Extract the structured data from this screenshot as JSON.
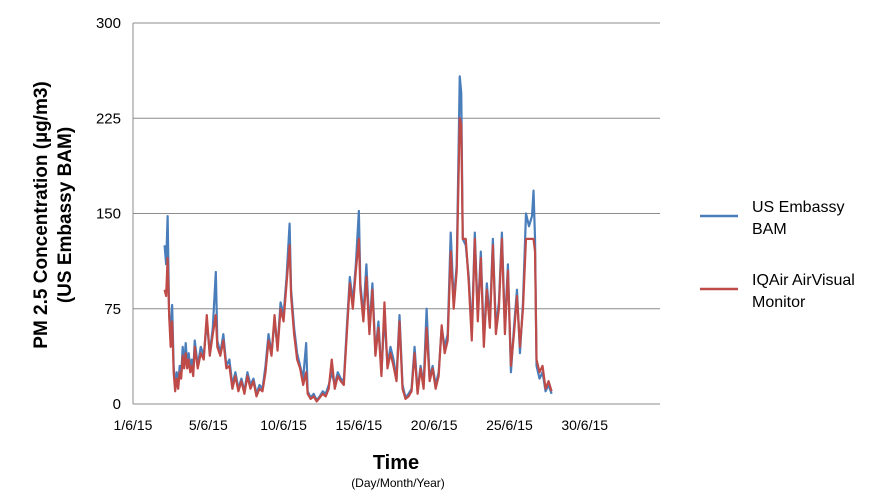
{
  "chart_data": {
    "type": "line",
    "title": "",
    "xlabel": "Time",
    "xlabel_sub": "(Day/Month/Year)",
    "ylabel_line1": "PM 2.5 Concentration (µg/m3)",
    "ylabel_line2": "(US Embassy BAM)",
    "ylim": [
      0,
      300
    ],
    "xlim": [
      1,
      36
    ],
    "y_ticks": [
      "0",
      "75",
      "150",
      "225",
      "300"
    ],
    "x_ticks": [
      {
        "label": "1/6/15",
        "day": 1
      },
      {
        "label": "5/6/15",
        "day": 6
      },
      {
        "label": "10/6/15",
        "day": 11
      },
      {
        "label": "15/6/15",
        "day": 16
      },
      {
        "label": "20/6/15",
        "day": 21
      },
      {
        "label": "25/6/15",
        "day": 26
      },
      {
        "label": "30/6/15",
        "day": 31
      }
    ],
    "grid": true,
    "legend": "right",
    "series": [
      {
        "name": "US Embassy BAM",
        "color": "#4a7ebb",
        "points": [
          [
            3.1,
            125
          ],
          [
            3.2,
            110
          ],
          [
            3.3,
            148
          ],
          [
            3.4,
            70
          ],
          [
            3.5,
            55
          ],
          [
            3.6,
            78
          ],
          [
            3.7,
            30
          ],
          [
            3.8,
            12
          ],
          [
            3.9,
            25
          ],
          [
            4.0,
            15
          ],
          [
            4.1,
            30
          ],
          [
            4.2,
            22
          ],
          [
            4.3,
            45
          ],
          [
            4.4,
            30
          ],
          [
            4.5,
            48
          ],
          [
            4.6,
            30
          ],
          [
            4.7,
            40
          ],
          [
            4.8,
            28
          ],
          [
            4.9,
            35
          ],
          [
            5.0,
            25
          ],
          [
            5.1,
            50
          ],
          [
            5.3,
            30
          ],
          [
            5.5,
            45
          ],
          [
            5.7,
            38
          ],
          [
            5.9,
            65
          ],
          [
            6.1,
            40
          ],
          [
            6.3,
            60
          ],
          [
            6.5,
            104
          ],
          [
            6.6,
            50
          ],
          [
            6.8,
            40
          ],
          [
            7.0,
            55
          ],
          [
            7.2,
            30
          ],
          [
            7.4,
            35
          ],
          [
            7.6,
            15
          ],
          [
            7.8,
            25
          ],
          [
            8.0,
            12
          ],
          [
            8.2,
            20
          ],
          [
            8.4,
            10
          ],
          [
            8.6,
            25
          ],
          [
            8.8,
            15
          ],
          [
            9.0,
            20
          ],
          [
            9.2,
            8
          ],
          [
            9.4,
            15
          ],
          [
            9.6,
            12
          ],
          [
            9.8,
            30
          ],
          [
            10.0,
            55
          ],
          [
            10.2,
            40
          ],
          [
            10.4,
            65
          ],
          [
            10.6,
            45
          ],
          [
            10.8,
            80
          ],
          [
            11.0,
            70
          ],
          [
            11.2,
            100
          ],
          [
            11.4,
            142
          ],
          [
            11.5,
            90
          ],
          [
            11.7,
            60
          ],
          [
            11.9,
            40
          ],
          [
            12.1,
            30
          ],
          [
            12.3,
            20
          ],
          [
            12.5,
            48
          ],
          [
            12.6,
            10
          ],
          [
            12.8,
            5
          ],
          [
            13.0,
            8
          ],
          [
            13.2,
            3
          ],
          [
            13.4,
            6
          ],
          [
            13.6,
            10
          ],
          [
            13.8,
            8
          ],
          [
            14.0,
            15
          ],
          [
            14.2,
            25
          ],
          [
            14.4,
            15
          ],
          [
            14.6,
            25
          ],
          [
            14.8,
            20
          ],
          [
            15.0,
            18
          ],
          [
            15.2,
            60
          ],
          [
            15.4,
            100
          ],
          [
            15.6,
            80
          ],
          [
            15.8,
            110
          ],
          [
            16.0,
            152
          ],
          [
            16.1,
            95
          ],
          [
            16.3,
            70
          ],
          [
            16.5,
            110
          ],
          [
            16.7,
            60
          ],
          [
            16.9,
            95
          ],
          [
            17.1,
            40
          ],
          [
            17.3,
            65
          ],
          [
            17.5,
            25
          ],
          [
            17.7,
            70
          ],
          [
            17.9,
            30
          ],
          [
            18.1,
            45
          ],
          [
            18.3,
            35
          ],
          [
            18.5,
            20
          ],
          [
            18.7,
            70
          ],
          [
            18.9,
            15
          ],
          [
            19.1,
            5
          ],
          [
            19.3,
            8
          ],
          [
            19.5,
            12
          ],
          [
            19.7,
            45
          ],
          [
            19.9,
            10
          ],
          [
            20.1,
            30
          ],
          [
            20.3,
            15
          ],
          [
            20.5,
            75
          ],
          [
            20.7,
            20
          ],
          [
            20.9,
            30
          ],
          [
            21.1,
            15
          ],
          [
            21.3,
            25
          ],
          [
            21.5,
            60
          ],
          [
            21.7,
            45
          ],
          [
            21.9,
            55
          ],
          [
            22.1,
            135
          ],
          [
            22.3,
            80
          ],
          [
            22.5,
            110
          ],
          [
            22.7,
            258
          ],
          [
            22.8,
            245
          ],
          [
            22.9,
            130
          ],
          [
            23.1,
            125
          ],
          [
            23.3,
            100
          ],
          [
            23.5,
            55
          ],
          [
            23.7,
            135
          ],
          [
            23.9,
            70
          ],
          [
            24.1,
            120
          ],
          [
            24.3,
            50
          ],
          [
            24.5,
            95
          ],
          [
            24.7,
            65
          ],
          [
            24.9,
            130
          ],
          [
            25.1,
            60
          ],
          [
            25.3,
            80
          ],
          [
            25.5,
            135
          ],
          [
            25.7,
            60
          ],
          [
            25.9,
            110
          ],
          [
            26.1,
            25
          ],
          [
            26.3,
            60
          ],
          [
            26.5,
            90
          ],
          [
            26.7,
            40
          ],
          [
            26.9,
            80
          ],
          [
            27.1,
            150
          ],
          [
            27.3,
            140
          ],
          [
            27.5,
            148
          ],
          [
            27.6,
            168
          ],
          [
            27.7,
            130
          ],
          [
            27.8,
            30
          ],
          [
            28.0,
            20
          ],
          [
            28.2,
            25
          ],
          [
            28.4,
            10
          ],
          [
            28.6,
            15
          ],
          [
            28.8,
            8
          ]
        ]
      },
      {
        "name": "IQAir AirVisual Monitor",
        "color": "#be4b48",
        "points": [
          [
            3.1,
            90
          ],
          [
            3.2,
            85
          ],
          [
            3.3,
            115
          ],
          [
            3.4,
            70
          ],
          [
            3.5,
            45
          ],
          [
            3.6,
            65
          ],
          [
            3.7,
            25
          ],
          [
            3.8,
            10
          ],
          [
            3.9,
            20
          ],
          [
            4.0,
            12
          ],
          [
            4.1,
            25
          ],
          [
            4.2,
            20
          ],
          [
            4.3,
            38
          ],
          [
            4.4,
            28
          ],
          [
            4.5,
            40
          ],
          [
            4.6,
            28
          ],
          [
            4.7,
            35
          ],
          [
            4.8,
            25
          ],
          [
            4.9,
            30
          ],
          [
            5.0,
            22
          ],
          [
            5.1,
            45
          ],
          [
            5.3,
            28
          ],
          [
            5.5,
            40
          ],
          [
            5.7,
            35
          ],
          [
            5.9,
            70
          ],
          [
            6.1,
            38
          ],
          [
            6.3,
            55
          ],
          [
            6.5,
            70
          ],
          [
            6.6,
            45
          ],
          [
            6.8,
            38
          ],
          [
            7.0,
            50
          ],
          [
            7.2,
            28
          ],
          [
            7.4,
            30
          ],
          [
            7.6,
            12
          ],
          [
            7.8,
            22
          ],
          [
            8.0,
            10
          ],
          [
            8.2,
            18
          ],
          [
            8.4,
            8
          ],
          [
            8.6,
            22
          ],
          [
            8.8,
            12
          ],
          [
            9.0,
            18
          ],
          [
            9.2,
            6
          ],
          [
            9.4,
            12
          ],
          [
            9.6,
            10
          ],
          [
            9.8,
            25
          ],
          [
            10.0,
            50
          ],
          [
            10.2,
            38
          ],
          [
            10.4,
            70
          ],
          [
            10.6,
            42
          ],
          [
            10.8,
            75
          ],
          [
            11.0,
            65
          ],
          [
            11.2,
            95
          ],
          [
            11.4,
            125
          ],
          [
            11.5,
            85
          ],
          [
            11.7,
            55
          ],
          [
            11.9,
            35
          ],
          [
            12.1,
            28
          ],
          [
            12.3,
            15
          ],
          [
            12.5,
            25
          ],
          [
            12.6,
            8
          ],
          [
            12.8,
            4
          ],
          [
            13.0,
            6
          ],
          [
            13.2,
            2
          ],
          [
            13.4,
            5
          ],
          [
            13.6,
            8
          ],
          [
            13.8,
            6
          ],
          [
            14.0,
            12
          ],
          [
            14.2,
            35
          ],
          [
            14.4,
            12
          ],
          [
            14.6,
            22
          ],
          [
            14.8,
            18
          ],
          [
            15.0,
            15
          ],
          [
            15.2,
            55
          ],
          [
            15.4,
            95
          ],
          [
            15.6,
            75
          ],
          [
            15.8,
            105
          ],
          [
            16.0,
            130
          ],
          [
            16.1,
            90
          ],
          [
            16.3,
            65
          ],
          [
            16.5,
            100
          ],
          [
            16.7,
            55
          ],
          [
            16.9,
            90
          ],
          [
            17.1,
            38
          ],
          [
            17.3,
            60
          ],
          [
            17.5,
            22
          ],
          [
            17.7,
            80
          ],
          [
            17.9,
            28
          ],
          [
            18.1,
            40
          ],
          [
            18.3,
            30
          ],
          [
            18.5,
            18
          ],
          [
            18.7,
            65
          ],
          [
            18.9,
            12
          ],
          [
            19.1,
            4
          ],
          [
            19.3,
            6
          ],
          [
            19.5,
            10
          ],
          [
            19.7,
            40
          ],
          [
            19.9,
            8
          ],
          [
            20.1,
            28
          ],
          [
            20.3,
            12
          ],
          [
            20.5,
            60
          ],
          [
            20.7,
            18
          ],
          [
            20.9,
            28
          ],
          [
            21.1,
            12
          ],
          [
            21.3,
            22
          ],
          [
            21.5,
            62
          ],
          [
            21.7,
            40
          ],
          [
            21.9,
            50
          ],
          [
            22.1,
            120
          ],
          [
            22.3,
            75
          ],
          [
            22.5,
            105
          ],
          [
            22.7,
            225
          ],
          [
            22.8,
            220
          ],
          [
            22.9,
            130
          ],
          [
            23.1,
            130
          ],
          [
            23.3,
            95
          ],
          [
            23.5,
            50
          ],
          [
            23.7,
            130
          ],
          [
            23.9,
            65
          ],
          [
            24.1,
            115
          ],
          [
            24.3,
            45
          ],
          [
            24.5,
            90
          ],
          [
            24.7,
            60
          ],
          [
            24.9,
            125
          ],
          [
            25.1,
            55
          ],
          [
            25.3,
            75
          ],
          [
            25.5,
            130
          ],
          [
            25.7,
            55
          ],
          [
            25.9,
            105
          ],
          [
            26.1,
            30
          ],
          [
            26.3,
            55
          ],
          [
            26.5,
            85
          ],
          [
            26.7,
            45
          ],
          [
            26.9,
            75
          ],
          [
            27.1,
            130
          ],
          [
            27.3,
            130
          ],
          [
            27.5,
            130
          ],
          [
            27.6,
            130
          ],
          [
            27.7,
            120
          ],
          [
            27.8,
            35
          ],
          [
            28.0,
            25
          ],
          [
            28.2,
            30
          ],
          [
            28.4,
            12
          ],
          [
            28.6,
            18
          ],
          [
            28.8,
            10
          ]
        ]
      }
    ]
  }
}
